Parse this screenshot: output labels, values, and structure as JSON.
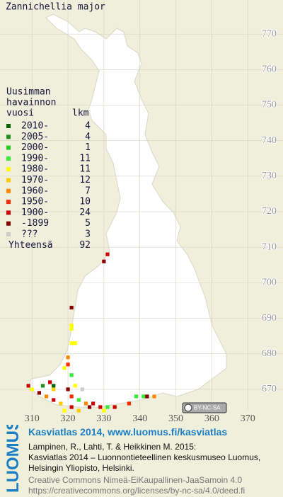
{
  "title": "Zannichellia major",
  "legend": {
    "heading": [
      "Uusimman",
      "havainnon",
      "vuosi"
    ],
    "count_heading": "lkm",
    "rows": [
      {
        "label": "2010-",
        "color": "#006400",
        "count": 4,
        "squares": [
          {
            "x": 316,
            "y": 671
          }
        ]
      },
      {
        "label": "2005-",
        "color": "#1f8f1f",
        "count": 4,
        "squares": [
          {
            "x": 313,
            "y": 671
          }
        ]
      },
      {
        "label": "2000-",
        "color": "#22cc22",
        "count": 1,
        "squares": []
      },
      {
        "label": "1990-",
        "color": "#33ee33",
        "count": 11,
        "squares": [
          {
            "x": 321,
            "y": 674
          },
          {
            "x": 323,
            "y": 667
          },
          {
            "x": 331,
            "y": 665
          },
          {
            "x": 339,
            "y": 668
          },
          {
            "x": 341,
            "y": 668
          }
        ]
      },
      {
        "label": "1980-",
        "color": "#ffff00",
        "count": 11,
        "squares": [
          {
            "x": 321,
            "y": 688
          },
          {
            "x": 321,
            "y": 687
          },
          {
            "x": 321,
            "y": 683
          },
          {
            "x": 322,
            "y": 683
          },
          {
            "x": 319,
            "y": 676
          },
          {
            "x": 310,
            "y": 670
          },
          {
            "x": 322,
            "y": 671
          },
          {
            "x": 330,
            "y": 664
          },
          {
            "x": 319,
            "y": 664
          }
        ]
      },
      {
        "label": "1970-",
        "color": "#ffcc00",
        "count": 12,
        "squares": [
          {
            "x": 318,
            "y": 666
          },
          {
            "x": 323,
            "y": 664
          },
          {
            "x": 316,
            "y": 670
          }
        ]
      },
      {
        "label": "1960-",
        "color": "#ff8800",
        "count": 7,
        "squares": [
          {
            "x": 320,
            "y": 679
          },
          {
            "x": 314,
            "y": 668
          },
          {
            "x": 325,
            "y": 666
          },
          {
            "x": 344,
            "y": 668
          }
        ]
      },
      {
        "label": "1950-",
        "color": "#ff2a00",
        "count": 10,
        "squares": [
          {
            "x": 320,
            "y": 677
          },
          {
            "x": 321,
            "y": 668
          },
          {
            "x": 337,
            "y": 666
          }
        ]
      },
      {
        "label": "1900-",
        "color": "#cc0000",
        "count": 24,
        "squares": [
          {
            "x": 331,
            "y": 708
          },
          {
            "x": 309,
            "y": 671
          },
          {
            "x": 315,
            "y": 672
          },
          {
            "x": 316,
            "y": 667
          },
          {
            "x": 321,
            "y": 665
          },
          {
            "x": 329,
            "y": 665
          },
          {
            "x": 333,
            "y": 665
          },
          {
            "x": 327,
            "y": 666
          }
        ]
      },
      {
        "label": "-1899",
        "color": "#8b0000",
        "count": 5,
        "squares": [
          {
            "x": 330,
            "y": 706
          },
          {
            "x": 321,
            "y": 693
          },
          {
            "x": 312,
            "y": 669
          },
          {
            "x": 320,
            "y": 670
          },
          {
            "x": 342,
            "y": 668
          },
          {
            "x": 326,
            "y": 665
          }
        ]
      },
      {
        "label": "???",
        "color": "#cccccc",
        "count": 3,
        "squares": [
          {
            "x": 324,
            "y": 670
          }
        ]
      }
    ],
    "total_label": "Yhteensä",
    "total": 92
  },
  "map": {
    "xlim": [
      301.1,
      379.8
    ],
    "ylim": [
      664,
      779.6
    ],
    "xticks": [
      310,
      320,
      330,
      340,
      350,
      360,
      370
    ],
    "yticks": [
      670,
      680,
      690,
      700,
      710,
      720,
      730,
      740,
      750,
      760,
      770
    ]
  },
  "license_badge": "BY-NC-SA",
  "logo": "LUOMUS",
  "footer": {
    "link": "Kasviatlas 2014, www.luomus.fi/kasviatlas",
    "citation": [
      "Lampinen, R., Lahti, T. & Heikkinen M. 2015:",
      "Kasviatlas 2014 – Luonnontieteellinen keskusmuseo Luomus,",
      "Helsingin Yliopisto, Helsinki."
    ],
    "license": [
      "Creative Commons Nimeä-EiKaupallinen-JaaSamoin 4.0",
      "https://creativecommons.org/licenses/by-nc-sa/4.0/deed.fi"
    ]
  }
}
